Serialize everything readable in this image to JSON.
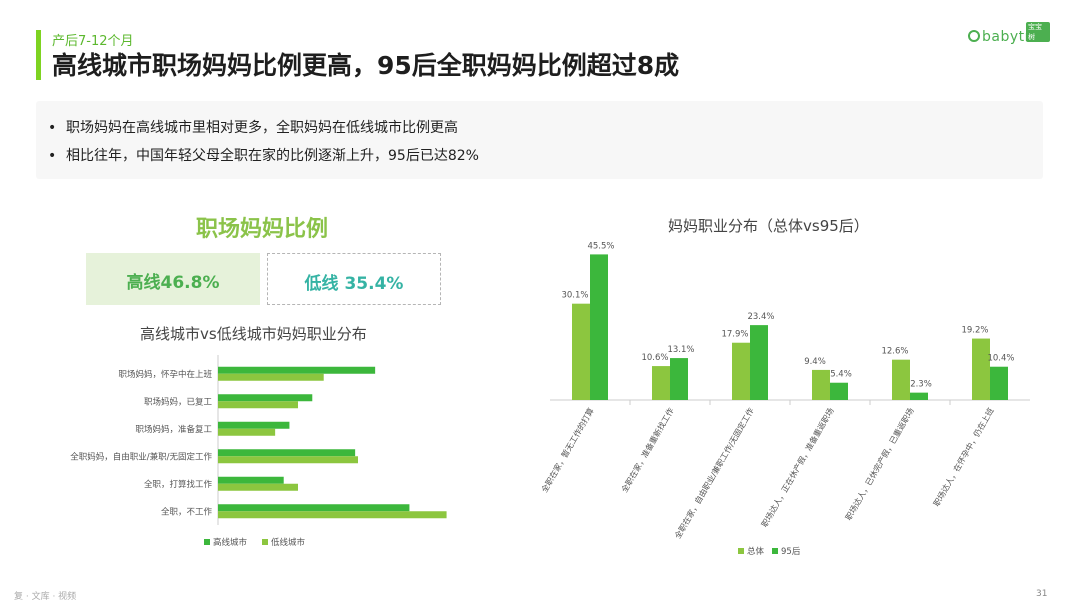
{
  "header": {
    "subtitle": "产后7-12个月",
    "title": "高线城市职场妈妈比例更高，95后全职妈妈比例超过8成",
    "logo_text": "babytree",
    "logo_badge": "宝宝树"
  },
  "bullets": [
    "职场妈妈在高线城市里相对更多，全职妈妈在低线城市比例更高",
    "相比往年，中国年轻父母全职在家的比例逐渐上升，95后已达82%"
  ],
  "bullet_marker": "•",
  "left_panel": {
    "heading": "职场妈妈比例",
    "high_label": "高线46.8%",
    "low_label": "低线 35.4%"
  },
  "colors": {
    "accent": "#7ed321",
    "dark_green": "#3cb73c",
    "light_green": "#8cc63f"
  },
  "chart_data": [
    {
      "type": "bar",
      "orientation": "horizontal",
      "title": "高线城市vs低线城市妈妈职业分布",
      "categories": [
        "职场妈妈，怀孕中在上班",
        "职场妈妈，已复工",
        "职场妈妈，准备复工",
        "全职妈妈，自由职业/兼职/无固定工作",
        "全职，打算找工作",
        "全职，不工作"
      ],
      "series": [
        {
          "name": "高线城市",
          "values": [
            27.5,
            16.5,
            12.5,
            24.0,
            11.5,
            33.5
          ]
        },
        {
          "name": "低线城市",
          "values": [
            18.5,
            14.0,
            10.0,
            24.5,
            14.0,
            40.0
          ]
        }
      ],
      "xlim": [
        0,
        42
      ],
      "legend": "bottom"
    },
    {
      "type": "bar",
      "title": "妈妈职业分布（总体vs95后）",
      "categories": [
        "全职在家，暂无工作的打算",
        "全职在家，准备重新找工作",
        "全职在家，自由职业/兼职工作/无固定工作",
        "职场达人，正在休产假，准备重返职场",
        "职场达人，已休完产假，已重返职场",
        "职场达人，在怀孕中，仍在上班"
      ],
      "series": [
        {
          "name": "总体",
          "values": [
            30.1,
            10.6,
            17.9,
            9.4,
            12.6,
            19.2
          ],
          "labels": [
            "30.1%",
            "10.6%",
            "17.9%",
            "9.4%",
            "12.6%",
            "19.2%"
          ]
        },
        {
          "name": "95后",
          "values": [
            45.5,
            13.1,
            23.4,
            5.4,
            2.3,
            10.4
          ],
          "labels": [
            "45.5%",
            "13.1%",
            "23.4%",
            "5.4%",
            "2.3%",
            "10.4%"
          ]
        }
      ],
      "ylim": [
        0,
        50
      ],
      "legend": "bottom"
    }
  ],
  "footer": {
    "page_number": "31",
    "watermark": "复 · 文库 · 视频"
  }
}
